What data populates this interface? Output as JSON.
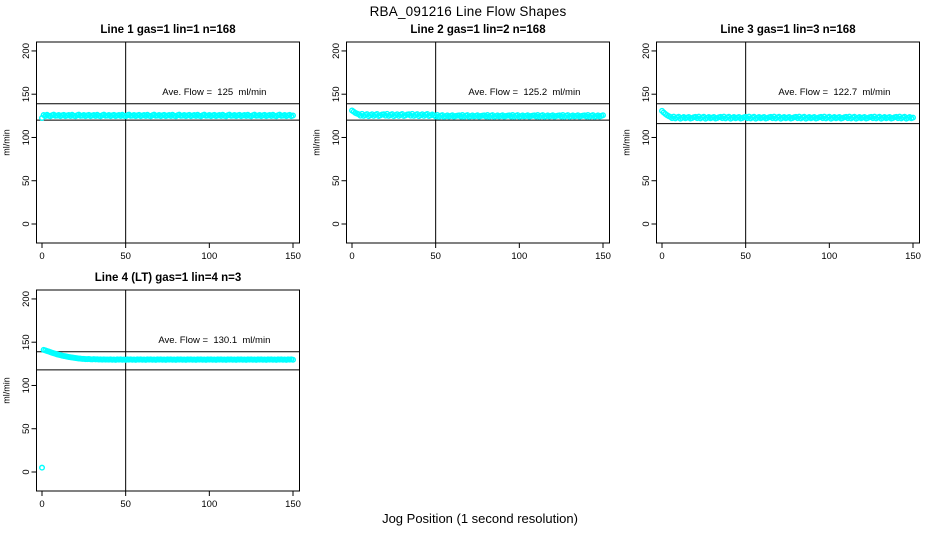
{
  "main_title": "RBA_091216  Line Flow Shapes",
  "x_label": "Jog Position (1 second resolution)",
  "colors": {
    "points": "#00FFFF",
    "axis": "#000000",
    "background": "#FFFFFF",
    "text": "#000000"
  },
  "chart_data": {
    "type": "scatter",
    "title": "RBA_091216  Line Flow Shapes",
    "xlabel": "Jog Position (1 second resolution)",
    "ylabel": "ml/min",
    "xlim": [
      -3,
      154
    ],
    "ylim": [
      -21,
      211
    ],
    "xticks": [
      0,
      50,
      100,
      150
    ],
    "yticks": [
      0,
      50,
      100,
      150,
      200
    ],
    "grid": false,
    "legend": "none",
    "marker": "open-circle",
    "vline_x": 50,
    "panels": [
      {
        "title": "Line 1 gas=1 lin=1 n=168",
        "annotation": "Ave. Flow =  125  ml/min",
        "ave_flow": 125,
        "n": 168,
        "limit_lines": [
          139,
          120
        ],
        "x_start": 0,
        "x_step": 1,
        "y": [
          122.5,
          125.9,
          124.8,
          126.2,
          125.1,
          124.5,
          125.7,
          126.4,
          124.9,
          125.3,
          126.0,
          124.6,
          125.5,
          126.1,
          124.7,
          125.4,
          125.9,
          124.8,
          126.2,
          125.1,
          124.5,
          125.7,
          126.4,
          124.9,
          125.3,
          126.0,
          124.6,
          125.5,
          126.1,
          124.7,
          125.4,
          125.9,
          124.8,
          126.2,
          125.1,
          124.5,
          125.7,
          126.4,
          124.9,
          125.3,
          126.0,
          124.6,
          125.5,
          126.1,
          124.7,
          125.4,
          125.9,
          124.8,
          126.2,
          125.1,
          124.5,
          125.7,
          126.4,
          124.9,
          125.3,
          126.0,
          124.6,
          125.5,
          126.1,
          124.7,
          125.4,
          125.9,
          124.8,
          126.2,
          125.1,
          124.5,
          125.7,
          126.4,
          124.9,
          125.3,
          126.0,
          124.6,
          125.5,
          126.1,
          124.7,
          125.4,
          125.9,
          124.8,
          126.2,
          125.1,
          124.5,
          125.7,
          126.4,
          124.9,
          125.3,
          126.0,
          124.6,
          125.5,
          126.1,
          124.7,
          125.4,
          125.9,
          124.8,
          126.2,
          125.1,
          124.5,
          125.7,
          126.4,
          124.9,
          125.3,
          126.0,
          124.6,
          125.5,
          126.1,
          124.7,
          125.4,
          125.9,
          124.8,
          126.2,
          125.1,
          124.5,
          125.7,
          126.4,
          124.9,
          125.3,
          126.0,
          124.6,
          125.5,
          126.1,
          124.7,
          125.4,
          125.9,
          124.8,
          126.2,
          125.1,
          124.5,
          125.7,
          126.4,
          124.9,
          125.3,
          126.0,
          124.6,
          125.5,
          126.1,
          124.7,
          125.4,
          125.9,
          124.8,
          126.2,
          125.1,
          124.5,
          125.7,
          126.4,
          124.9,
          125.3,
          126.0,
          124.6,
          125.5,
          126.1,
          124.7,
          125.4
        ]
      },
      {
        "title": "Line 2 gas=1 lin=2 n=168",
        "annotation": "Ave. Flow =  125.2  ml/min",
        "ave_flow": 125.2,
        "n": 168,
        "limit_lines": [
          139,
          120
        ],
        "x_start": 0,
        "x_step": 1,
        "y": [
          131.2,
          129.8,
          128.4,
          127.6,
          126.8,
          125.2,
          127.3,
          124.9,
          126.1,
          127.0,
          124.6,
          125.8,
          126.9,
          125.0,
          126.3,
          127.1,
          124.8,
          125.6,
          126.5,
          126.8,
          125.2,
          127.3,
          124.9,
          126.1,
          127.0,
          124.6,
          125.8,
          126.9,
          125.0,
          126.3,
          127.1,
          124.8,
          125.6,
          126.5,
          126.8,
          125.2,
          127.3,
          124.9,
          126.1,
          127.0,
          124.6,
          125.8,
          126.9,
          125.0,
          126.3,
          127.1,
          124.8,
          125.6,
          126.5,
          125.5,
          124.3,
          125.9,
          124.0,
          125.1,
          125.8,
          123.9,
          124.7,
          125.6,
          124.2,
          125.0,
          125.7,
          124.1,
          124.8,
          125.3,
          125.5,
          124.3,
          125.9,
          124.0,
          125.1,
          125.8,
          123.9,
          124.7,
          125.6,
          124.2,
          125.0,
          125.7,
          124.1,
          124.8,
          125.3,
          125.5,
          124.3,
          125.9,
          124.0,
          125.1,
          125.8,
          123.9,
          124.7,
          125.6,
          124.2,
          125.0,
          125.7,
          124.1,
          124.8,
          125.3,
          125.5,
          124.3,
          125.9,
          124.0,
          125.1,
          125.8,
          123.9,
          124.7,
          125.6,
          124.2,
          125.0,
          125.7,
          124.1,
          124.8,
          125.3,
          125.5,
          124.3,
          125.9,
          124.0,
          125.1,
          125.8,
          123.9,
          124.7,
          125.6,
          124.2,
          125.0,
          125.7,
          124.1,
          124.8,
          125.3,
          125.5,
          124.3,
          125.9,
          124.0,
          125.1,
          125.8,
          123.9,
          124.7,
          125.6,
          124.2,
          125.0,
          125.7,
          124.1,
          124.8,
          125.3,
          125.5,
          124.3,
          125.9,
          124.0,
          125.1,
          125.8,
          123.9,
          124.7,
          125.6,
          124.2,
          125.0,
          125.7
        ]
      },
      {
        "title": "Line 3 gas=1 lin=3 n=168",
        "annotation": "Ave. Flow =  122.7  ml/min",
        "ave_flow": 122.7,
        "n": 168,
        "limit_lines": [
          139,
          116
        ],
        "x_start": 0,
        "x_step": 1,
        "y": [
          130.8,
          128.9,
          127.2,
          125.8,
          124.7,
          123.8,
          122.4,
          124.1,
          122.0,
          123.2,
          123.9,
          121.8,
          122.7,
          123.6,
          122.2,
          123.0,
          123.7,
          121.9,
          122.5,
          123.3,
          123.8,
          122.4,
          124.1,
          122.0,
          123.2,
          123.9,
          121.8,
          122.7,
          123.6,
          122.2,
          123.0,
          123.7,
          121.9,
          122.5,
          123.3,
          123.8,
          122.4,
          124.1,
          122.0,
          123.2,
          123.9,
          121.8,
          122.7,
          123.6,
          122.2,
          123.0,
          123.7,
          121.9,
          122.5,
          123.3,
          123.8,
          122.4,
          124.1,
          122.0,
          123.2,
          123.9,
          121.8,
          122.7,
          123.6,
          122.2,
          123.0,
          123.7,
          121.9,
          122.5,
          123.3,
          123.8,
          122.4,
          124.1,
          122.0,
          123.2,
          123.9,
          121.8,
          122.7,
          123.6,
          122.2,
          123.0,
          123.7,
          121.9,
          122.5,
          123.3,
          123.8,
          122.4,
          124.1,
          122.0,
          123.2,
          123.9,
          121.8,
          122.7,
          123.6,
          122.2,
          123.0,
          123.7,
          121.9,
          122.5,
          123.3,
          123.8,
          122.4,
          124.1,
          122.0,
          123.2,
          123.9,
          121.8,
          122.7,
          123.6,
          122.2,
          123.0,
          123.7,
          121.9,
          122.5,
          123.3,
          123.8,
          122.4,
          124.1,
          122.0,
          123.2,
          123.9,
          121.8,
          122.7,
          123.6,
          122.2,
          123.0,
          123.7,
          121.9,
          122.5,
          123.3,
          123.8,
          122.4,
          124.1,
          122.0,
          123.2,
          123.9,
          121.8,
          122.7,
          123.6,
          122.2,
          123.0,
          123.7,
          121.9,
          122.5,
          123.3,
          123.8,
          122.4,
          124.1,
          122.0,
          123.2,
          123.9,
          121.8,
          122.7,
          123.6,
          122.2,
          123.0
        ]
      },
      {
        "title": "Line 4 (LT) gas=1 lin=4 n=3",
        "annotation": "Ave. Flow =  130.1  ml/min",
        "ave_flow": 130.1,
        "n": 3,
        "limit_lines": [
          139,
          118
        ],
        "x_start": 0,
        "x_step": 1,
        "y": [
          5.0,
          141.2,
          140.6,
          139.9,
          139.2,
          138.5,
          137.8,
          137.2,
          136.6,
          136.0,
          135.5,
          135.0,
          134.5,
          134.1,
          133.7,
          133.3,
          132.9,
          132.6,
          132.3,
          132.0,
          131.7,
          131.5,
          131.2,
          131.0,
          130.8,
          130.7,
          130.5,
          130.4,
          130.6,
          130.3,
          130.2,
          130.4,
          130.1,
          130.3,
          130.0,
          130.2,
          129.9,
          130.1,
          129.8,
          130.0,
          129.9,
          130.1,
          129.7,
          130.0,
          129.6,
          130.2,
          129.8,
          130.1,
          129.7,
          130.0,
          129.6,
          130.2,
          129.8,
          130.1,
          129.7,
          130.0,
          129.6,
          130.2,
          129.8,
          130.1,
          129.7,
          130.0,
          129.6,
          130.2,
          129.8,
          130.1,
          129.7,
          130.0,
          129.6,
          130.2,
          129.8,
          130.1,
          129.7,
          130.0,
          129.6,
          130.2,
          129.8,
          130.1,
          129.7,
          130.0,
          129.6,
          130.2,
          129.8,
          130.1,
          129.7,
          130.0,
          129.6,
          130.2,
          129.8,
          130.1,
          129.7,
          130.0,
          129.6,
          130.2,
          129.8,
          130.1,
          129.7,
          130.0,
          129.6,
          130.2,
          129.8,
          130.1,
          129.7,
          130.0,
          129.6,
          130.2,
          129.8,
          130.1,
          129.7,
          130.0,
          129.6,
          130.2,
          129.8,
          130.1,
          129.7,
          130.0,
          129.6,
          130.2,
          129.8,
          130.1,
          129.7,
          130.0,
          129.6,
          130.2,
          129.8,
          130.1,
          129.7,
          130.0,
          129.6,
          130.2,
          129.8,
          130.1,
          129.7,
          130.0,
          129.6,
          130.2,
          129.8,
          130.1,
          129.7,
          130.0,
          129.6,
          130.2,
          129.8,
          130.1,
          129.7,
          130.0,
          129.6,
          130.2,
          129.8,
          130.1,
          129.7
        ]
      }
    ]
  }
}
